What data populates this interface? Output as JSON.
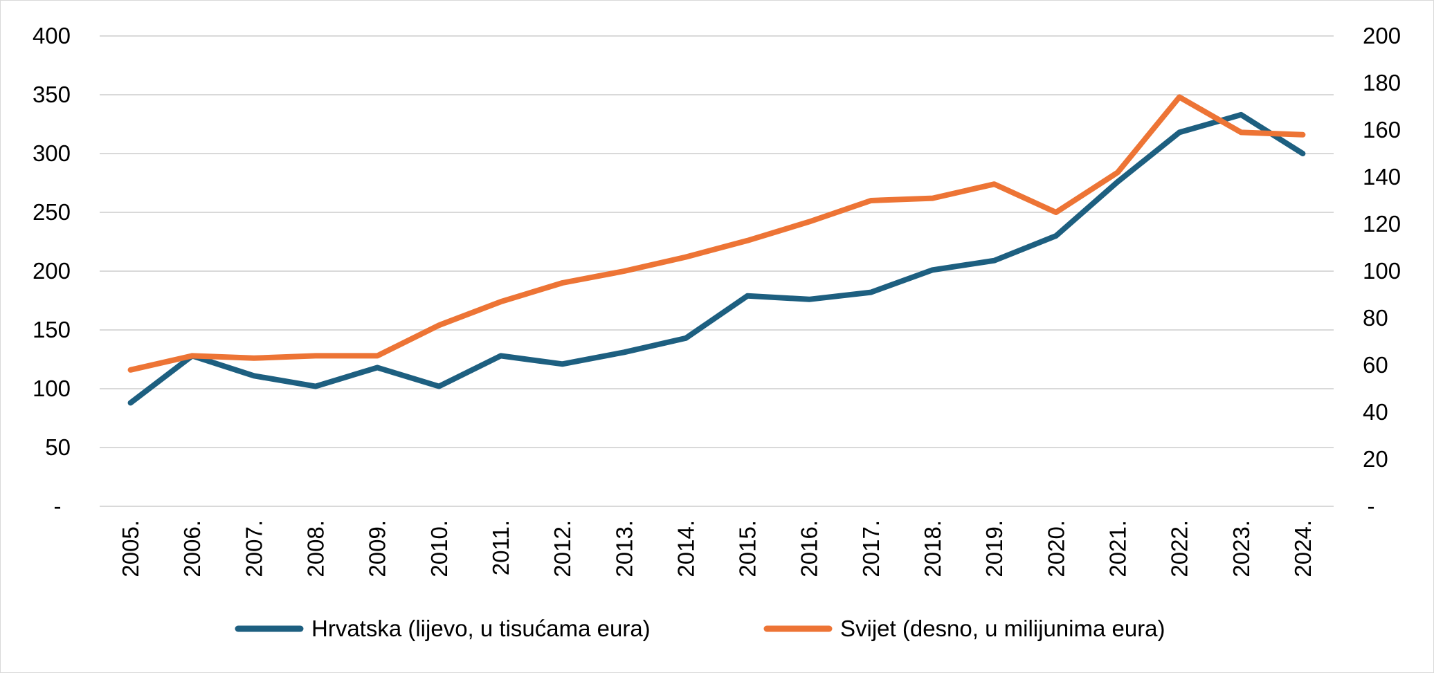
{
  "chart_data": {
    "type": "line",
    "title": "",
    "xlabel": "",
    "ylabel": "",
    "categories": [
      "2005.",
      "2006.",
      "2007.",
      "2008.",
      "2009.",
      "2010.",
      "2011.",
      "2012.",
      "2013.",
      "2014.",
      "2015.",
      "2016.",
      "2017.",
      "2018.",
      "2019.",
      "2020.",
      "2021.",
      "2022.",
      "2023.",
      "2024."
    ],
    "y_left": {
      "ylim": [
        0,
        400
      ],
      "ticks": [
        0,
        50,
        100,
        150,
        200,
        250,
        300,
        350,
        400
      ],
      "tick_labels": [
        "-",
        "50",
        "100",
        "150",
        "200",
        "250",
        "300",
        "350",
        "400"
      ]
    },
    "y_right": {
      "ylim": [
        0,
        200
      ],
      "ticks": [
        0,
        20,
        40,
        60,
        80,
        100,
        120,
        140,
        160,
        180,
        200
      ],
      "tick_labels": [
        "-",
        "20",
        "40",
        "60",
        "80",
        "100",
        "120",
        "140",
        "160",
        "180",
        "200"
      ]
    },
    "grid": true,
    "legend_position": "bottom",
    "series": [
      {
        "name": "Hrvatska (lijevo, u tisućama eura)",
        "axis": "left",
        "color": "#1d5f80",
        "values": [
          88,
          128,
          111,
          102,
          118,
          102,
          128,
          121,
          131,
          143,
          179,
          176,
          182,
          201,
          209,
          230,
          276,
          318,
          333,
          300
        ]
      },
      {
        "name": "Svijet (desno, u milijunima eura)",
        "axis": "right",
        "color": "#ed7435",
        "values": [
          58,
          64,
          63,
          64,
          64,
          77,
          87,
          95,
          100,
          106,
          113,
          121,
          130,
          131,
          137,
          125,
          142,
          174,
          159,
          158
        ]
      }
    ]
  }
}
